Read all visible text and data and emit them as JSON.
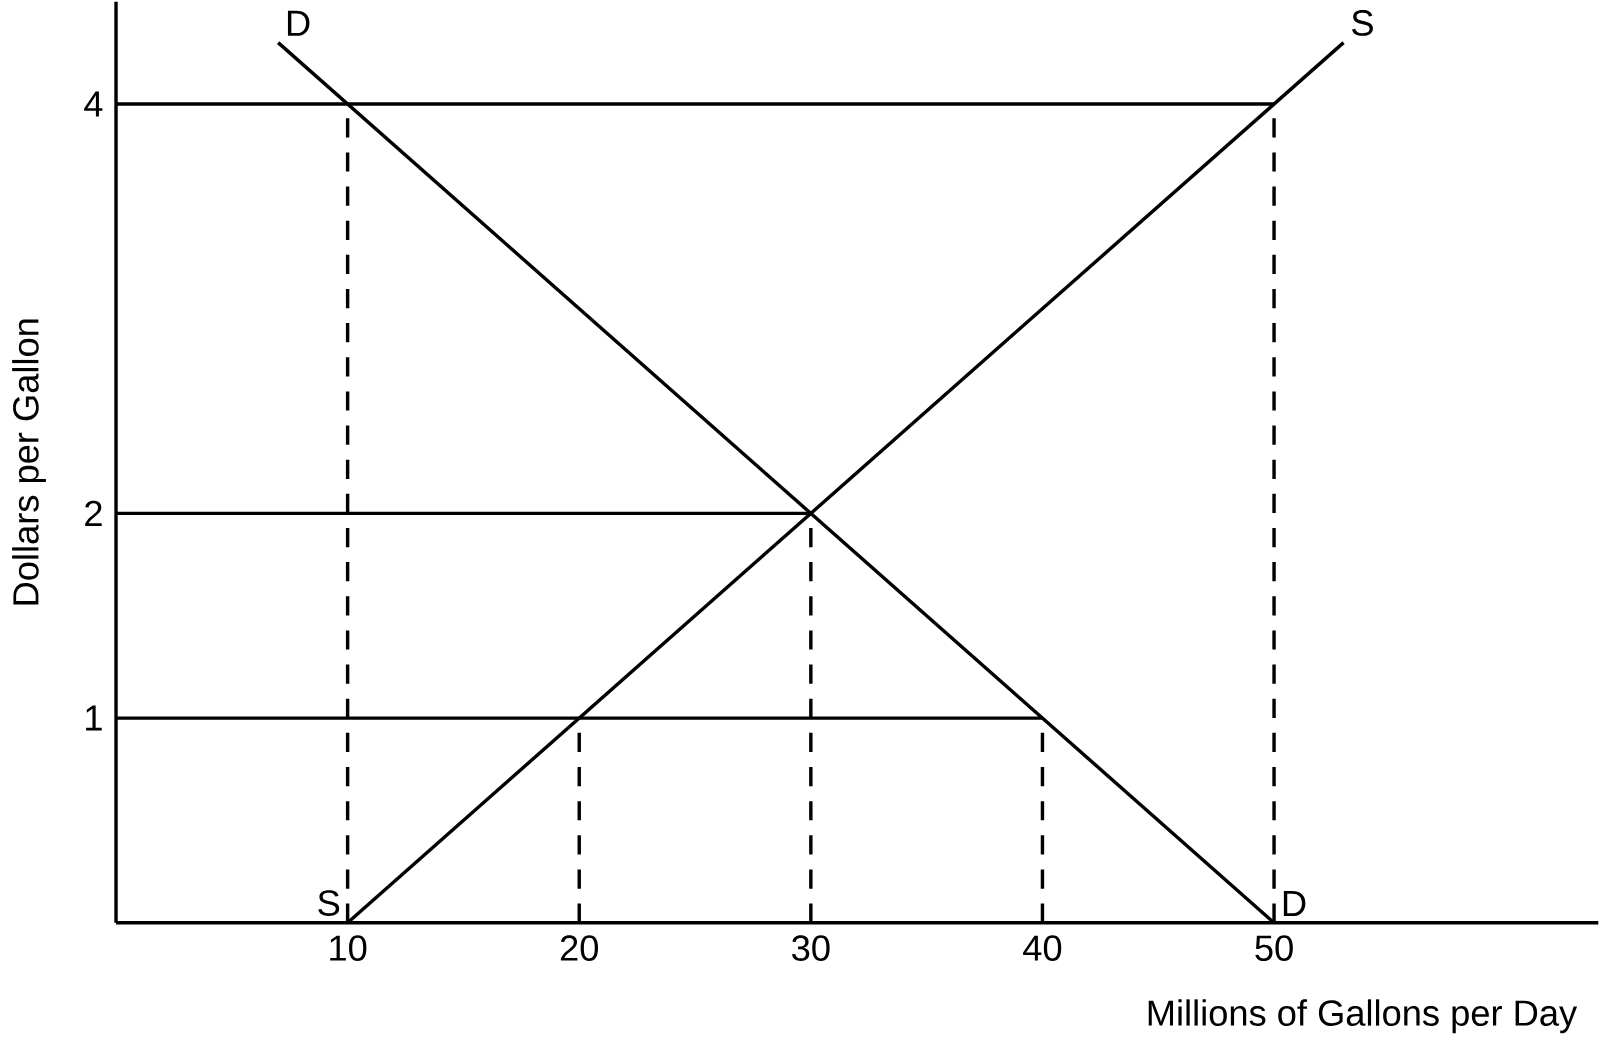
{
  "chart_data": {
    "type": "line",
    "xlabel": "Millions of Gallons per Day",
    "ylabel": "Dollars per Gallon",
    "xlim": [
      0,
      64
    ],
    "ylim": [
      0,
      4.5
    ],
    "xticks": [
      10,
      20,
      30,
      40,
      50
    ],
    "yticks": [
      1,
      2,
      4
    ],
    "grid": false,
    "marker": "none",
    "series": [
      {
        "color": "#000000",
        "line_style": "solid",
        "x": [
          7,
          50
        ],
        "values": [
          4.3,
          0
        ]
      },
      {
        "color": "#000000",
        "line_style": "solid",
        "x": [
          10,
          53
        ],
        "values": [
          0,
          4.3
        ]
      },
      {
        "color": "#000000",
        "line_style": "solid",
        "x": [
          0,
          50
        ],
        "values": [
          4,
          4
        ]
      },
      {
        "color": "#000000",
        "line_style": "solid",
        "x": [
          0,
          30
        ],
        "values": [
          2,
          2
        ]
      },
      {
        "color": "#000000",
        "line_style": "solid",
        "x": [
          0,
          40
        ],
        "values": [
          1,
          1
        ]
      },
      {
        "color": "#000000",
        "line_style": "dashed",
        "x": [
          10,
          10
        ],
        "values": [
          0,
          4
        ]
      },
      {
        "color": "#000000",
        "line_style": "dashed",
        "x": [
          20,
          20
        ],
        "values": [
          0,
          1
        ]
      },
      {
        "color": "#000000",
        "line_style": "dashed",
        "x": [
          30,
          30
        ],
        "values": [
          0,
          2
        ]
      },
      {
        "color": "#000000",
        "line_style": "dashed",
        "x": [
          40,
          40
        ],
        "values": [
          0,
          1
        ]
      },
      {
        "color": "#000000",
        "line_style": "dashed",
        "x": [
          50,
          50
        ],
        "values": [
          0,
          4
        ]
      }
    ],
    "annotations": [
      {
        "text": "D",
        "x": 7,
        "y": 4.3
      },
      {
        "text": "S",
        "x": 53,
        "y": 4.3
      },
      {
        "text": "S",
        "x": 10,
        "y": 0
      },
      {
        "text": "D",
        "x": 50,
        "y": 0
      }
    ]
  }
}
